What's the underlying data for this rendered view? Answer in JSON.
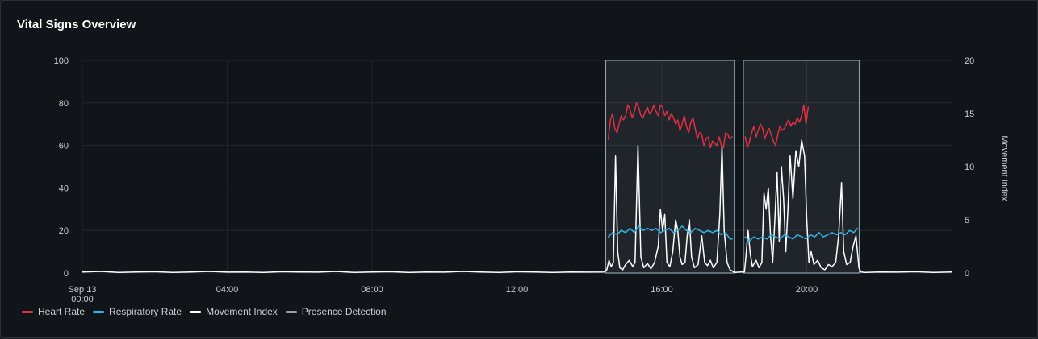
{
  "panel": {
    "title": "Vital Signs Overview"
  },
  "colors": {
    "heart_rate": "#e02f44",
    "respiratory_rate": "#33b5e5",
    "movement_index": "#ffffff",
    "presence_detection": "#8ea2b0"
  },
  "chart_data": {
    "type": "line",
    "title": "Vital Signs Overview",
    "x_axis": {
      "unit": "hours since Sep 13 00:00",
      "range": [
        0,
        24
      ],
      "ticks": [
        {
          "value": 0,
          "label": "Sep 13",
          "sublabel": "00:00"
        },
        {
          "value": 4,
          "label": "04:00"
        },
        {
          "value": 8,
          "label": "08:00"
        },
        {
          "value": 12,
          "label": "12:00"
        },
        {
          "value": 16,
          "label": "16:00"
        },
        {
          "value": 20,
          "label": "20:00"
        }
      ]
    },
    "y_left": {
      "range": [
        0,
        100
      ],
      "ticks": [
        0,
        20,
        40,
        60,
        80,
        100
      ]
    },
    "y_right": {
      "label": "Movement Index",
      "range": [
        0,
        20
      ],
      "ticks": [
        0,
        5,
        10,
        15,
        20
      ]
    },
    "grid": true,
    "legend_position": "bottom-left",
    "series": [
      {
        "name": "Heart Rate",
        "axis": "left",
        "points": [
          [
            14.52,
            63
          ],
          [
            14.58,
            72
          ],
          [
            14.64,
            75
          ],
          [
            14.7,
            68
          ],
          [
            14.76,
            66
          ],
          [
            14.82,
            70
          ],
          [
            14.88,
            74
          ],
          [
            14.94,
            72
          ],
          [
            15.0,
            74
          ],
          [
            15.06,
            79
          ],
          [
            15.12,
            77
          ],
          [
            15.18,
            73
          ],
          [
            15.24,
            76
          ],
          [
            15.3,
            80
          ],
          [
            15.36,
            78
          ],
          [
            15.42,
            74
          ],
          [
            15.48,
            73
          ],
          [
            15.54,
            76
          ],
          [
            15.6,
            78
          ],
          [
            15.66,
            75
          ],
          [
            15.72,
            76
          ],
          [
            15.78,
            79
          ],
          [
            15.84,
            76
          ],
          [
            15.9,
            74
          ],
          [
            15.96,
            79
          ],
          [
            16.02,
            78
          ],
          [
            16.08,
            74
          ],
          [
            16.14,
            76
          ],
          [
            16.2,
            72
          ],
          [
            16.26,
            75
          ],
          [
            16.32,
            73
          ],
          [
            16.38,
            70
          ],
          [
            16.44,
            72
          ],
          [
            16.5,
            67
          ],
          [
            16.56,
            70
          ],
          [
            16.62,
            74
          ],
          [
            16.68,
            69
          ],
          [
            16.74,
            66
          ],
          [
            16.8,
            71
          ],
          [
            16.86,
            73
          ],
          [
            16.92,
            68
          ],
          [
            16.98,
            63
          ],
          [
            17.04,
            66
          ],
          [
            17.1,
            65
          ],
          [
            17.16,
            60
          ],
          [
            17.22,
            63
          ],
          [
            17.28,
            64
          ],
          [
            17.34,
            59
          ],
          [
            17.4,
            62
          ],
          [
            17.46,
            61
          ],
          [
            17.52,
            60
          ],
          [
            17.58,
            64
          ],
          [
            17.64,
            60
          ],
          [
            17.7,
            59
          ],
          [
            17.76,
            66
          ],
          [
            17.82,
            65
          ],
          [
            17.88,
            63
          ],
          [
            17.94,
            64
          ],
          [
            null,
            null
          ],
          [
            18.3,
            64
          ],
          [
            18.36,
            59
          ],
          [
            18.42,
            62
          ],
          [
            18.48,
            66
          ],
          [
            18.54,
            69
          ],
          [
            18.6,
            64
          ],
          [
            18.66,
            67
          ],
          [
            18.72,
            70
          ],
          [
            18.78,
            68
          ],
          [
            18.84,
            63
          ],
          [
            18.9,
            66
          ],
          [
            18.96,
            68
          ],
          [
            19.02,
            65
          ],
          [
            19.08,
            62
          ],
          [
            19.14,
            60
          ],
          [
            19.2,
            65
          ],
          [
            19.26,
            69
          ],
          [
            19.32,
            67
          ],
          [
            19.38,
            68
          ],
          [
            19.44,
            70
          ],
          [
            19.5,
            72
          ],
          [
            19.56,
            69
          ],
          [
            19.62,
            71
          ],
          [
            19.68,
            70
          ],
          [
            19.74,
            73
          ],
          [
            19.8,
            71
          ],
          [
            19.86,
            74
          ],
          [
            19.92,
            79
          ],
          [
            19.98,
            70
          ],
          [
            20.04,
            78
          ]
        ]
      },
      {
        "name": "Respiratory Rate",
        "axis": "left",
        "points": [
          [
            14.52,
            17
          ],
          [
            14.64,
            19
          ],
          [
            14.76,
            18
          ],
          [
            14.88,
            20
          ],
          [
            15.0,
            19
          ],
          [
            15.12,
            21
          ],
          [
            15.24,
            19
          ],
          [
            15.36,
            22
          ],
          [
            15.48,
            20
          ],
          [
            15.6,
            21
          ],
          [
            15.72,
            20
          ],
          [
            15.84,
            21
          ],
          [
            15.96,
            19
          ],
          [
            16.08,
            20
          ],
          [
            16.2,
            21
          ],
          [
            16.32,
            19
          ],
          [
            16.44,
            20
          ],
          [
            16.56,
            22
          ],
          [
            16.68,
            20
          ],
          [
            16.8,
            19
          ],
          [
            16.92,
            21
          ],
          [
            17.04,
            20
          ],
          [
            17.16,
            19
          ],
          [
            17.28,
            20
          ],
          [
            17.4,
            19
          ],
          [
            17.52,
            20
          ],
          [
            17.64,
            18
          ],
          [
            17.76,
            19
          ],
          [
            17.88,
            16
          ],
          [
            17.94,
            16
          ],
          [
            null,
            null
          ],
          [
            18.3,
            17
          ],
          [
            18.42,
            15
          ],
          [
            18.54,
            17
          ],
          [
            18.66,
            16
          ],
          [
            18.78,
            17
          ],
          [
            18.9,
            16
          ],
          [
            19.02,
            18
          ],
          [
            19.14,
            17
          ],
          [
            19.26,
            16
          ],
          [
            19.38,
            18
          ],
          [
            19.5,
            17
          ],
          [
            19.62,
            16
          ],
          [
            19.74,
            18
          ],
          [
            19.86,
            17
          ],
          [
            19.98,
            16
          ],
          [
            20.1,
            18
          ],
          [
            20.22,
            17
          ],
          [
            20.34,
            19
          ],
          [
            20.46,
            17
          ],
          [
            20.58,
            18
          ],
          [
            20.7,
            19
          ],
          [
            20.82,
            18
          ],
          [
            20.94,
            19
          ],
          [
            21.06,
            18
          ],
          [
            21.18,
            20
          ],
          [
            21.3,
            19
          ],
          [
            21.4,
            21
          ]
        ]
      },
      {
        "name": "Movement Index",
        "axis": "right",
        "points": [
          [
            0,
            0.1
          ],
          [
            0.5,
            0.15
          ],
          [
            1.0,
            0.05
          ],
          [
            1.5,
            0.1
          ],
          [
            2.0,
            0.12
          ],
          [
            2.5,
            0.05
          ],
          [
            3.0,
            0.1
          ],
          [
            3.5,
            0.15
          ],
          [
            4.0,
            0.08
          ],
          [
            4.5,
            0.1
          ],
          [
            5.0,
            0.05
          ],
          [
            5.5,
            0.12
          ],
          [
            6.0,
            0.1
          ],
          [
            6.5,
            0.08
          ],
          [
            7.0,
            0.15
          ],
          [
            7.5,
            0.05
          ],
          [
            8.0,
            0.1
          ],
          [
            8.5,
            0.12
          ],
          [
            9.0,
            0.05
          ],
          [
            9.5,
            0.1
          ],
          [
            10.0,
            0.08
          ],
          [
            10.5,
            0.15
          ],
          [
            11.0,
            0.1
          ],
          [
            11.5,
            0.05
          ],
          [
            12.0,
            0.12
          ],
          [
            12.5,
            0.1
          ],
          [
            13.0,
            0.05
          ],
          [
            13.5,
            0.1
          ],
          [
            14.0,
            0.08
          ],
          [
            14.4,
            0.1
          ],
          [
            14.48,
            0.3
          ],
          [
            14.54,
            1.2
          ],
          [
            14.6,
            0.6
          ],
          [
            14.66,
            1.0
          ],
          [
            14.72,
            11.0
          ],
          [
            14.78,
            2.0
          ],
          [
            14.84,
            0.5
          ],
          [
            14.92,
            0.3
          ],
          [
            15.0,
            0.8
          ],
          [
            15.1,
            1.2
          ],
          [
            15.2,
            0.6
          ],
          [
            15.26,
            1.0
          ],
          [
            15.34,
            12.0
          ],
          [
            15.42,
            1.5
          ],
          [
            15.5,
            0.5
          ],
          [
            15.6,
            0.9
          ],
          [
            15.7,
            0.4
          ],
          [
            15.8,
            1.0
          ],
          [
            15.9,
            2.5
          ],
          [
            15.96,
            6.0
          ],
          [
            16.02,
            4.0
          ],
          [
            16.08,
            5.5
          ],
          [
            16.14,
            1.0
          ],
          [
            16.22,
            0.6
          ],
          [
            16.3,
            2.0
          ],
          [
            16.38,
            5.0
          ],
          [
            16.44,
            4.0
          ],
          [
            16.5,
            1.5
          ],
          [
            16.56,
            0.8
          ],
          [
            16.64,
            1.0
          ],
          [
            16.7,
            3.5
          ],
          [
            16.76,
            5.0
          ],
          [
            16.82,
            1.5
          ],
          [
            16.9,
            0.5
          ],
          [
            17.0,
            0.8
          ],
          [
            17.1,
            3.5
          ],
          [
            17.18,
            1.0
          ],
          [
            17.26,
            0.7
          ],
          [
            17.34,
            1.2
          ],
          [
            17.42,
            0.5
          ],
          [
            17.52,
            1.0
          ],
          [
            17.6,
            5.5
          ],
          [
            17.66,
            12.0
          ],
          [
            17.72,
            4.0
          ],
          [
            17.8,
            1.0
          ],
          [
            17.88,
            0.3
          ],
          [
            17.94,
            0.2
          ],
          [
            18.0,
            0.05
          ],
          [
            18.2,
            0.1
          ],
          [
            18.28,
            0.1
          ],
          [
            18.32,
            1.5
          ],
          [
            18.38,
            4.0
          ],
          [
            18.44,
            1.8
          ],
          [
            18.5,
            0.6
          ],
          [
            18.6,
            1.2
          ],
          [
            18.68,
            0.5
          ],
          [
            18.76,
            1.0
          ],
          [
            18.82,
            7.5
          ],
          [
            18.88,
            6.0
          ],
          [
            18.94,
            8.0
          ],
          [
            19.0,
            3.5
          ],
          [
            19.06,
            1.0
          ],
          [
            19.12,
            5.0
          ],
          [
            19.18,
            9.5
          ],
          [
            19.24,
            3.0
          ],
          [
            19.3,
            10.0
          ],
          [
            19.36,
            7.0
          ],
          [
            19.42,
            2.0
          ],
          [
            19.48,
            6.0
          ],
          [
            19.54,
            11.0
          ],
          [
            19.62,
            7.0
          ],
          [
            19.7,
            11.5
          ],
          [
            19.78,
            10.0
          ],
          [
            19.86,
            12.5
          ],
          [
            19.94,
            11.0
          ],
          [
            20.0,
            5.0
          ],
          [
            20.06,
            1.0
          ],
          [
            20.12,
            2.0
          ],
          [
            20.2,
            0.8
          ],
          [
            20.3,
            1.2
          ],
          [
            20.4,
            0.5
          ],
          [
            20.5,
            0.3
          ],
          [
            20.6,
            0.8
          ],
          [
            20.7,
            0.6
          ],
          [
            20.8,
            1.0
          ],
          [
            20.88,
            3.5
          ],
          [
            20.96,
            8.5
          ],
          [
            21.02,
            2.0
          ],
          [
            21.1,
            0.8
          ],
          [
            21.2,
            1.0
          ],
          [
            21.28,
            2.5
          ],
          [
            21.36,
            3.5
          ],
          [
            21.44,
            0.5
          ],
          [
            21.5,
            0.1
          ],
          [
            21.6,
            0.05
          ],
          [
            22.0,
            0.1
          ],
          [
            22.5,
            0.08
          ],
          [
            23.0,
            0.12
          ],
          [
            23.5,
            0.05
          ],
          [
            24.0,
            0.1
          ]
        ]
      },
      {
        "name": "Presence Detection",
        "axis": "left",
        "regions": [
          [
            14.45,
            18.0
          ],
          [
            18.25,
            21.45
          ]
        ]
      }
    ]
  }
}
